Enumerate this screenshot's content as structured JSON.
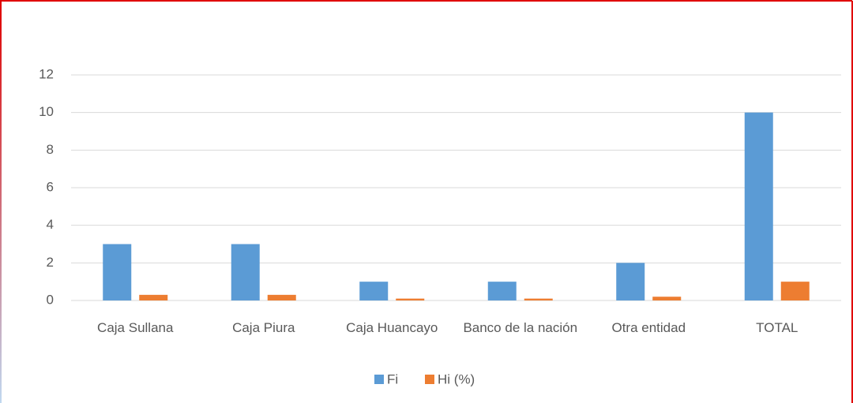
{
  "chart_data": {
    "type": "bar",
    "categories": [
      "Caja Sullana",
      "Caja Piura",
      "Caja Huancayo",
      "Banco de la nación",
      "Otra entidad",
      "TOTAL"
    ],
    "series": [
      {
        "name": "Fi",
        "color": "#5b9bd5",
        "values": [
          3,
          3,
          1,
          1,
          2,
          10
        ]
      },
      {
        "name": "Hi (%)",
        "color": "#ed7d31",
        "values": [
          0.3,
          0.3,
          0.1,
          0.1,
          0.2,
          1
        ]
      }
    ],
    "ylim": [
      0,
      12
    ],
    "yticks": [
      0,
      2,
      4,
      6,
      8,
      10,
      12
    ],
    "grid": true,
    "legend": "bottom"
  }
}
